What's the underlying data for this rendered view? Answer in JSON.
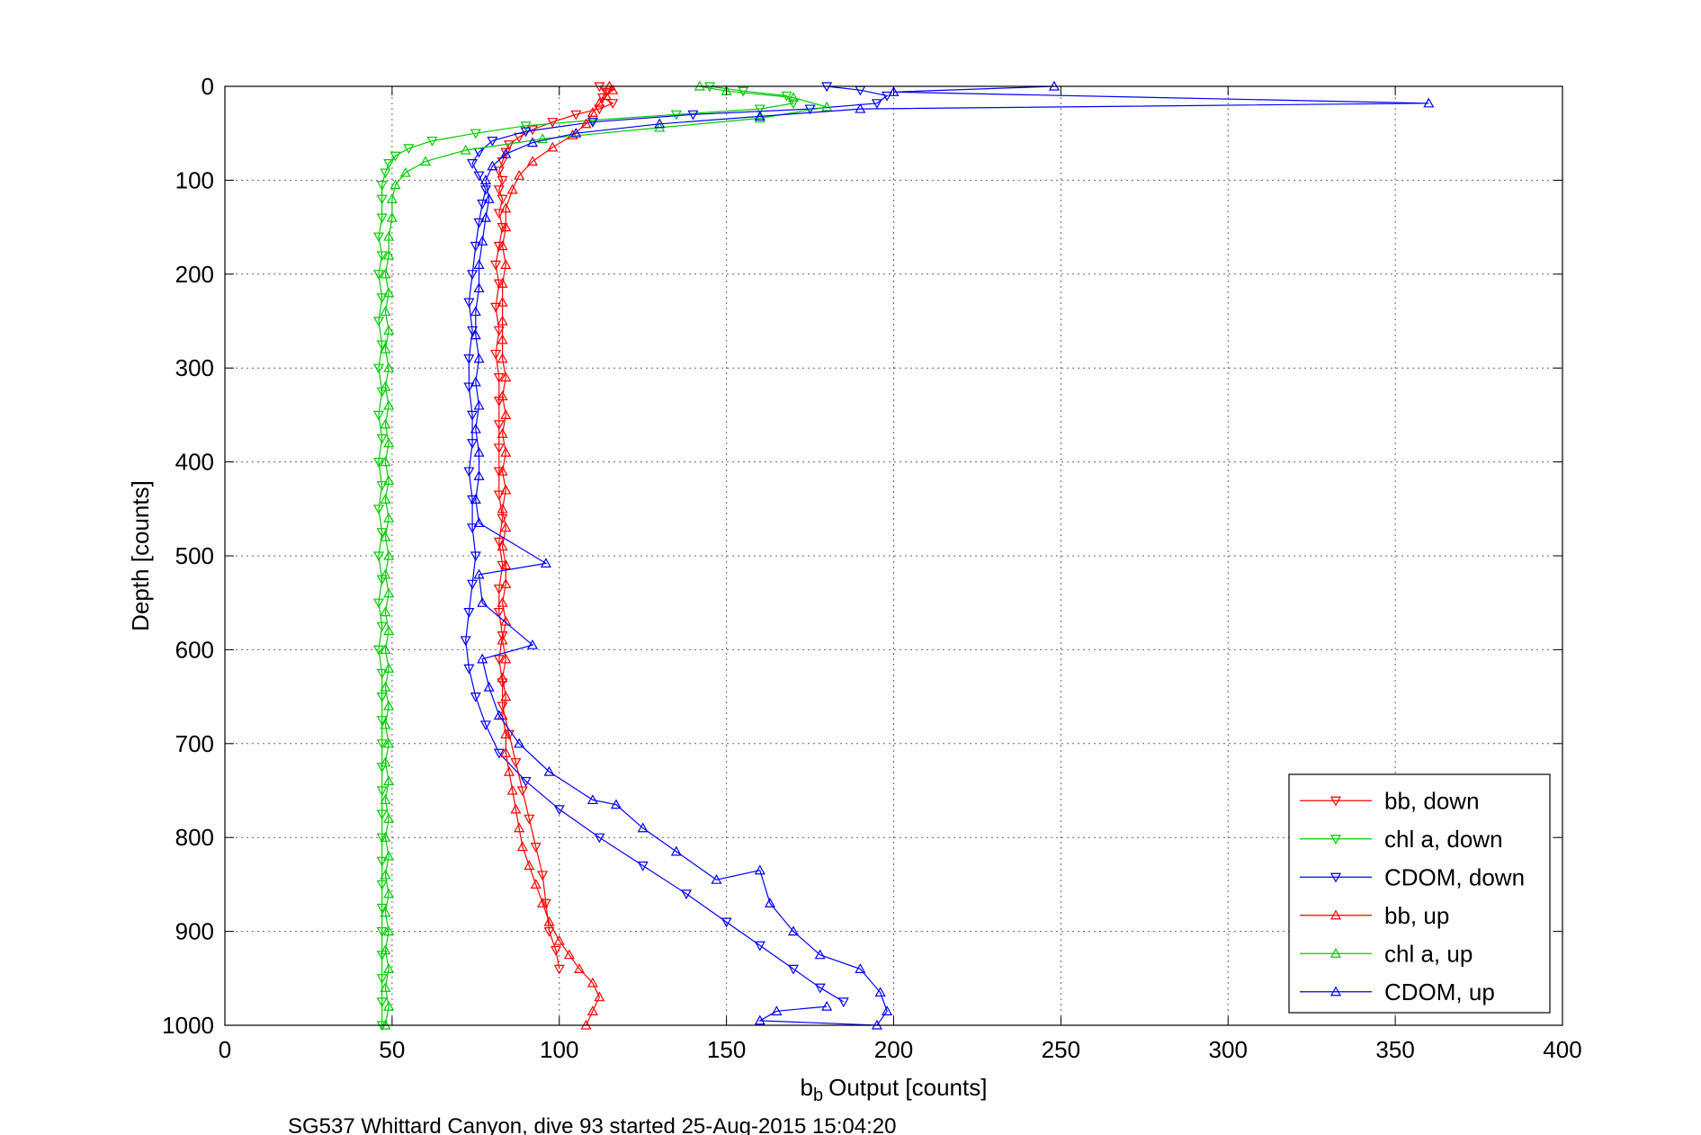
{
  "chart_data": {
    "type": "scatter",
    "title": "",
    "xlabel": "Output [counts]",
    "xlabel_prefix": "b",
    "xlabel_subscript": "b",
    "ylabel": "Depth [counts]",
    "xlim": [
      0,
      400
    ],
    "ylim": [
      0,
      1000
    ],
    "y_reversed": true,
    "grid": true,
    "legend_position": "bottom-right",
    "x_ticks": [
      "0",
      "50",
      "100",
      "150",
      "200",
      "250",
      "300",
      "350",
      "400"
    ],
    "y_ticks": [
      "0",
      "100",
      "200",
      "300",
      "400",
      "500",
      "600",
      "700",
      "800",
      "900",
      "1000"
    ],
    "caption": "SG537 Whittard Canyon, dive 93 started 25-Aug-2015 15:04:20",
    "series": [
      {
        "name": "bb, down",
        "color": "#ff0000",
        "marker": "triangle-down",
        "line": true,
        "points": [
          [
            112,
            0
          ],
          [
            114,
            6
          ],
          [
            113,
            12
          ],
          [
            116,
            18
          ],
          [
            112,
            24
          ],
          [
            105,
            30
          ],
          [
            98,
            38
          ],
          [
            92,
            46
          ],
          [
            88,
            54
          ],
          [
            85,
            62
          ],
          [
            84,
            70
          ],
          [
            83,
            80
          ],
          [
            82,
            90
          ],
          [
            83,
            100
          ],
          [
            82,
            110
          ],
          [
            83,
            120
          ],
          [
            82,
            135
          ],
          [
            83,
            150
          ],
          [
            82,
            170
          ],
          [
            81,
            190
          ],
          [
            82,
            210
          ],
          [
            81,
            235
          ],
          [
            82,
            260
          ],
          [
            81,
            285
          ],
          [
            82,
            310
          ],
          [
            82,
            335
          ],
          [
            82,
            360
          ],
          [
            82,
            385
          ],
          [
            82,
            410
          ],
          [
            82,
            435
          ],
          [
            83,
            460
          ],
          [
            82,
            485
          ],
          [
            83,
            510
          ],
          [
            82,
            535
          ],
          [
            82,
            560
          ],
          [
            83,
            585
          ],
          [
            82,
            610
          ],
          [
            83,
            635
          ],
          [
            83,
            660
          ],
          [
            85,
            690
          ],
          [
            87,
            720
          ],
          [
            89,
            750
          ],
          [
            91,
            780
          ],
          [
            93,
            810
          ],
          [
            95,
            840
          ],
          [
            96,
            870
          ],
          [
            97,
            900
          ],
          [
            99,
            920
          ],
          [
            100,
            940
          ]
        ]
      },
      {
        "name": "chl a, down",
        "color": "#00cc00",
        "marker": "triangle-down",
        "line": true,
        "points": [
          [
            145,
            0
          ],
          [
            155,
            5
          ],
          [
            168,
            10
          ],
          [
            170,
            18
          ],
          [
            160,
            24
          ],
          [
            135,
            30
          ],
          [
            110,
            36
          ],
          [
            90,
            42
          ],
          [
            75,
            50
          ],
          [
            62,
            58
          ],
          [
            55,
            66
          ],
          [
            51,
            74
          ],
          [
            49,
            82
          ],
          [
            48,
            92
          ],
          [
            47,
            105
          ],
          [
            47,
            120
          ],
          [
            47,
            140
          ],
          [
            46,
            160
          ],
          [
            47,
            180
          ],
          [
            46,
            200
          ],
          [
            47,
            225
          ],
          [
            46,
            250
          ],
          [
            47,
            275
          ],
          [
            46,
            300
          ],
          [
            47,
            325
          ],
          [
            46,
            350
          ],
          [
            47,
            375
          ],
          [
            46,
            400
          ],
          [
            47,
            425
          ],
          [
            46,
            450
          ],
          [
            47,
            475
          ],
          [
            46,
            500
          ],
          [
            47,
            525
          ],
          [
            46,
            550
          ],
          [
            47,
            575
          ],
          [
            46,
            600
          ],
          [
            47,
            625
          ],
          [
            47,
            650
          ],
          [
            47,
            675
          ],
          [
            47,
            700
          ],
          [
            47,
            725
          ],
          [
            47,
            750
          ],
          [
            47,
            775
          ],
          [
            47,
            800
          ],
          [
            47,
            825
          ],
          [
            47,
            850
          ],
          [
            47,
            875
          ],
          [
            47,
            900
          ],
          [
            47,
            925
          ],
          [
            47,
            950
          ],
          [
            47,
            975
          ],
          [
            47,
            1000
          ]
        ]
      },
      {
        "name": "CDOM, down",
        "color": "#0000ff",
        "marker": "triangle-down",
        "line": true,
        "points": [
          [
            180,
            0
          ],
          [
            190,
            4
          ],
          [
            198,
            10
          ],
          [
            195,
            18
          ],
          [
            175,
            24
          ],
          [
            140,
            30
          ],
          [
            110,
            38
          ],
          [
            90,
            48
          ],
          [
            80,
            58
          ],
          [
            76,
            70
          ],
          [
            74,
            82
          ],
          [
            76,
            95
          ],
          [
            78,
            110
          ],
          [
            77,
            125
          ],
          [
            76,
            145
          ],
          [
            75,
            170
          ],
          [
            74,
            200
          ],
          [
            73,
            230
          ],
          [
            74,
            260
          ],
          [
            73,
            290
          ],
          [
            73,
            320
          ],
          [
            74,
            350
          ],
          [
            74,
            380
          ],
          [
            73,
            410
          ],
          [
            74,
            440
          ],
          [
            74,
            470
          ],
          [
            75,
            500
          ],
          [
            74,
            530
          ],
          [
            73,
            560
          ],
          [
            72,
            590
          ],
          [
            73,
            620
          ],
          [
            75,
            650
          ],
          [
            78,
            680
          ],
          [
            82,
            710
          ],
          [
            90,
            740
          ],
          [
            100,
            770
          ],
          [
            112,
            800
          ],
          [
            125,
            830
          ],
          [
            138,
            860
          ],
          [
            150,
            890
          ],
          [
            160,
            915
          ],
          [
            170,
            940
          ],
          [
            178,
            960
          ],
          [
            185,
            975
          ]
        ]
      },
      {
        "name": "bb, up",
        "color": "#ff0000",
        "marker": "triangle-up",
        "line": true,
        "points": [
          [
            108,
            1000
          ],
          [
            110,
            985
          ],
          [
            112,
            970
          ],
          [
            110,
            955
          ],
          [
            106,
            940
          ],
          [
            103,
            925
          ],
          [
            100,
            910
          ],
          [
            97,
            890
          ],
          [
            95,
            870
          ],
          [
            93,
            850
          ],
          [
            91,
            830
          ],
          [
            89,
            810
          ],
          [
            88,
            790
          ],
          [
            87,
            770
          ],
          [
            86,
            750
          ],
          [
            85,
            730
          ],
          [
            84,
            710
          ],
          [
            84,
            690
          ],
          [
            83,
            670
          ],
          [
            84,
            650
          ],
          [
            83,
            630
          ],
          [
            84,
            610
          ],
          [
            83,
            590
          ],
          [
            84,
            570
          ],
          [
            83,
            550
          ],
          [
            84,
            530
          ],
          [
            84,
            510
          ],
          [
            83,
            490
          ],
          [
            84,
            470
          ],
          [
            83,
            450
          ],
          [
            84,
            430
          ],
          [
            83,
            410
          ],
          [
            84,
            390
          ],
          [
            83,
            370
          ],
          [
            84,
            350
          ],
          [
            83,
            330
          ],
          [
            84,
            310
          ],
          [
            83,
            290
          ],
          [
            83,
            270
          ],
          [
            83,
            250
          ],
          [
            83,
            230
          ],
          [
            83,
            210
          ],
          [
            84,
            190
          ],
          [
            83,
            170
          ],
          [
            84,
            150
          ],
          [
            84,
            130
          ],
          [
            86,
            110
          ],
          [
            88,
            95
          ],
          [
            92,
            80
          ],
          [
            98,
            65
          ],
          [
            104,
            52
          ],
          [
            108,
            40
          ],
          [
            110,
            28
          ],
          [
            112,
            18
          ],
          [
            114,
            10
          ],
          [
            116,
            4
          ],
          [
            115,
            0
          ]
        ]
      },
      {
        "name": "chl a, up",
        "color": "#00cc00",
        "marker": "triangle-up",
        "line": true,
        "points": [
          [
            48,
            1000
          ],
          [
            49,
            980
          ],
          [
            48,
            960
          ],
          [
            49,
            940
          ],
          [
            48,
            920
          ],
          [
            49,
            900
          ],
          [
            48,
            880
          ],
          [
            49,
            860
          ],
          [
            48,
            840
          ],
          [
            49,
            820
          ],
          [
            48,
            800
          ],
          [
            49,
            780
          ],
          [
            48,
            760
          ],
          [
            49,
            740
          ],
          [
            48,
            720
          ],
          [
            49,
            700
          ],
          [
            48,
            680
          ],
          [
            49,
            660
          ],
          [
            48,
            640
          ],
          [
            49,
            620
          ],
          [
            48,
            600
          ],
          [
            49,
            580
          ],
          [
            48,
            560
          ],
          [
            49,
            540
          ],
          [
            48,
            520
          ],
          [
            49,
            500
          ],
          [
            48,
            480
          ],
          [
            49,
            460
          ],
          [
            48,
            440
          ],
          [
            49,
            420
          ],
          [
            48,
            400
          ],
          [
            49,
            380
          ],
          [
            48,
            360
          ],
          [
            49,
            340
          ],
          [
            48,
            320
          ],
          [
            49,
            300
          ],
          [
            48,
            280
          ],
          [
            49,
            260
          ],
          [
            48,
            240
          ],
          [
            49,
            220
          ],
          [
            48,
            200
          ],
          [
            49,
            180
          ],
          [
            49,
            160
          ],
          [
            50,
            140
          ],
          [
            50,
            120
          ],
          [
            51,
            105
          ],
          [
            54,
            92
          ],
          [
            60,
            80
          ],
          [
            72,
            68
          ],
          [
            95,
            56
          ],
          [
            130,
            44
          ],
          [
            160,
            34
          ],
          [
            180,
            22
          ],
          [
            170,
            12
          ],
          [
            150,
            5
          ],
          [
            142,
            0
          ]
        ]
      },
      {
        "name": "CDOM, up",
        "color": "#0000ff",
        "marker": "triangle-up",
        "line": true,
        "points": [
          [
            248,
            0
          ],
          [
            200,
            6
          ],
          [
            360,
            18
          ],
          [
            190,
            24
          ],
          [
            160,
            32
          ],
          [
            130,
            40
          ],
          [
            105,
            50
          ],
          [
            92,
            60
          ],
          [
            84,
            72
          ],
          [
            80,
            85
          ],
          [
            78,
            100
          ],
          [
            79,
            120
          ],
          [
            78,
            140
          ],
          [
            77,
            165
          ],
          [
            76,
            190
          ],
          [
            76,
            215
          ],
          [
            75,
            240
          ],
          [
            75,
            265
          ],
          [
            76,
            290
          ],
          [
            75,
            315
          ],
          [
            76,
            340
          ],
          [
            75,
            365
          ],
          [
            76,
            390
          ],
          [
            76,
            415
          ],
          [
            75,
            440
          ],
          [
            76,
            465
          ],
          [
            96,
            508
          ],
          [
            76,
            520
          ],
          [
            77,
            550
          ],
          [
            92,
            595
          ],
          [
            77,
            610
          ],
          [
            79,
            640
          ],
          [
            82,
            670
          ],
          [
            88,
            700
          ],
          [
            97,
            730
          ],
          [
            110,
            760
          ],
          [
            117,
            765
          ],
          [
            125,
            790
          ],
          [
            135,
            815
          ],
          [
            147,
            845
          ],
          [
            160,
            835
          ],
          [
            163,
            870
          ],
          [
            170,
            900
          ],
          [
            178,
            925
          ],
          [
            190,
            940
          ],
          [
            196,
            965
          ],
          [
            198,
            985
          ],
          [
            195,
            1000
          ],
          [
            160,
            995
          ],
          [
            165,
            985
          ],
          [
            180,
            980
          ]
        ]
      }
    ]
  }
}
